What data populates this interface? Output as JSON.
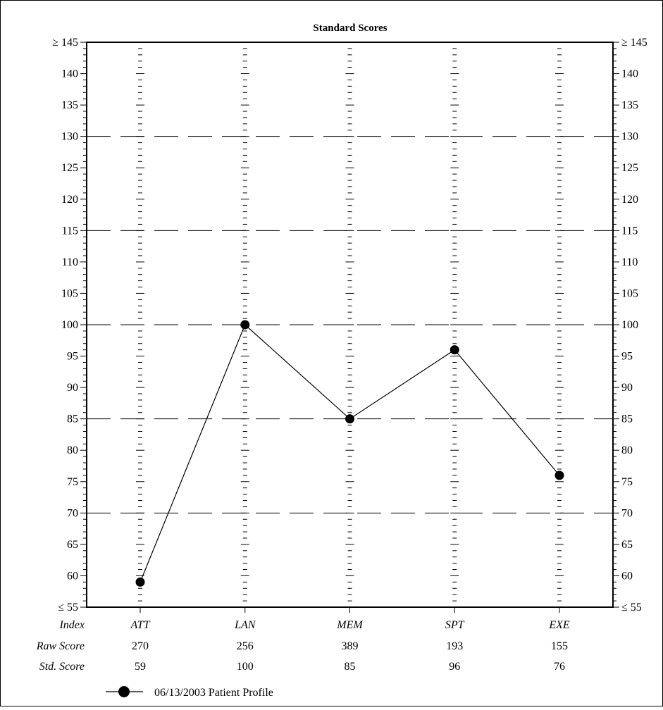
{
  "chart_data": {
    "type": "line",
    "title": "Standard Scores",
    "ylim": [
      55,
      145
    ],
    "yticks": [
      "≤ 55",
      "60",
      "65",
      "70",
      "75",
      "80",
      "85",
      "90",
      "95",
      "100",
      "105",
      "110",
      "115",
      "120",
      "125",
      "130",
      "135",
      "140",
      "≥ 145"
    ],
    "reference_lines": [
      70,
      85,
      100,
      115,
      130
    ],
    "categories": [
      "ATT",
      "LAN",
      "MEM",
      "SPT",
      "EXE"
    ],
    "series": [
      {
        "name": "06/13/2003 Patient Profile",
        "values": [
          59,
          100,
          85,
          96,
          76
        ]
      }
    ],
    "table": {
      "row_labels": [
        "Index",
        "Raw Score",
        "Std. Score"
      ],
      "raw_scores": [
        "270",
        "256",
        "389",
        "193",
        "155"
      ],
      "std_scores": [
        "59",
        "100",
        "85",
        "96",
        "76"
      ]
    },
    "legend_position": "bottom-left",
    "colors": {
      "line": "#000000",
      "marker": "#000000"
    }
  }
}
